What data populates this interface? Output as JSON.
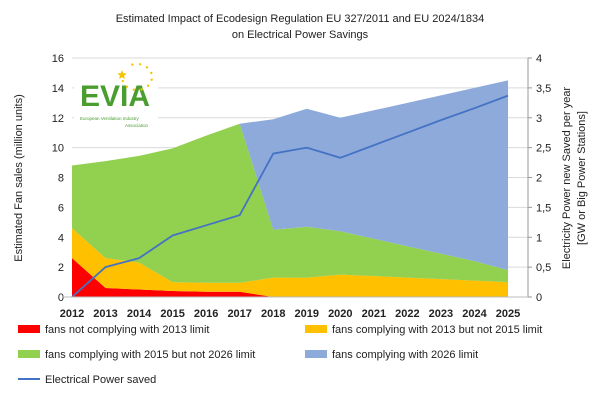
{
  "chart_data": {
    "type": "area",
    "title": "Estimated Impact of Ecodesign Regulation EU 327/2011 and EU 2024/1834",
    "subtitle": "on Electrical Power Savings",
    "ylabel": "Estimated Fan sales (million units)",
    "y2label_line1": "Electricity Power new Saved per year",
    "y2label_line2": "[GW or Big Power Stations]",
    "ylim": [
      0,
      16
    ],
    "y2lim": [
      0,
      4
    ],
    "yticks": [
      "0",
      "2",
      "4",
      "6",
      "8",
      "10",
      "12",
      "14",
      "16"
    ],
    "y2ticks": [
      "0",
      "0,5",
      "1",
      "1,5",
      "2",
      "2,5",
      "3",
      "3,5",
      "4"
    ],
    "categories": [
      "2012",
      "2013",
      "2014",
      "2015",
      "2016",
      "2017",
      "2018",
      "2019",
      "2020",
      "2021",
      "2022",
      "2023",
      "2024",
      "2025"
    ],
    "stacked": true,
    "grid": true,
    "legend_placement": "bottom",
    "series": [
      {
        "name": "fans not complying with 2013 limit",
        "color": "#ff0000",
        "axis": "left",
        "values": [
          2.6,
          0.6,
          0.5,
          0.4,
          0.35,
          0.35,
          0,
          0,
          0,
          0,
          0,
          0,
          0,
          0
        ]
      },
      {
        "name": "fans complying with 2013 but not 2015 limit",
        "color": "#ffc000",
        "axis": "left",
        "values": [
          2.0,
          2.0,
          1.8,
          0.6,
          0.6,
          0.6,
          1.3,
          1.3,
          1.5,
          1.4,
          1.3,
          1.2,
          1.1,
          1.0
        ]
      },
      {
        "name": "fans complying with 2015 but not 2026 limit",
        "color": "#92d050",
        "axis": "left",
        "values": [
          4.2,
          6.5,
          7.15,
          8.95,
          9.85,
          10.65,
          3.2,
          3.4,
          2.9,
          2.5,
          2.1,
          1.7,
          1.3,
          0.8
        ]
      },
      {
        "name": "fans complying with 2026 limit",
        "color": "#8eaadb",
        "axis": "left",
        "values": [
          0,
          0,
          0,
          0,
          0,
          0,
          7.4,
          7.9,
          7.6,
          8.6,
          9.6,
          10.6,
          11.6,
          12.7
        ]
      }
    ],
    "line_series": {
      "name": "Electrical Power saved",
      "color": "#4472c4",
      "axis": "right",
      "values": [
        0,
        0.5,
        0.65,
        1.03,
        1.2,
        1.37,
        2.4,
        2.5,
        2.33,
        2.54,
        2.75,
        2.96,
        3.16,
        3.37
      ]
    }
  },
  "logo": {
    "text": "EVIA",
    "subtitle_line1": "European Ventilation Industry",
    "subtitle_line2": "Association"
  }
}
